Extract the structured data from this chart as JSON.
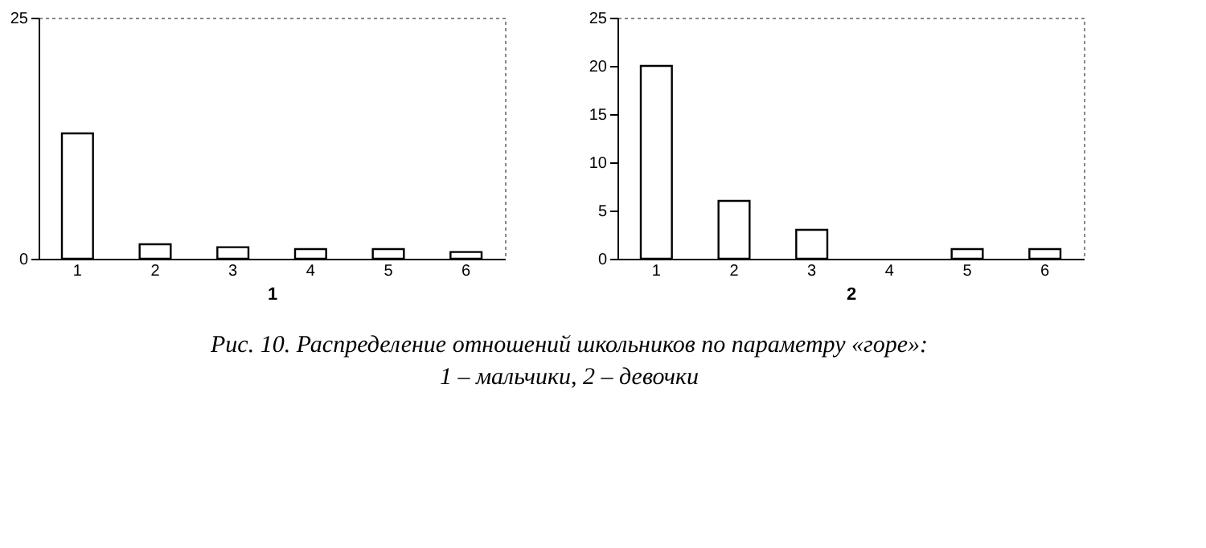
{
  "chart_data": [
    {
      "type": "bar",
      "xlabel": "1",
      "categories": [
        "1",
        "2",
        "3",
        "4",
        "5",
        "6"
      ],
      "values": [
        13,
        1.5,
        1.2,
        1,
        1,
        0.7
      ],
      "color": "#ffffff",
      "ylim": [
        0,
        25
      ],
      "yticks": [
        0,
        25
      ],
      "grid": false
    },
    {
      "type": "bar",
      "xlabel": "2",
      "categories": [
        "1",
        "2",
        "3",
        "4",
        "5",
        "6"
      ],
      "values": [
        20,
        6,
        3,
        0,
        1,
        1
      ],
      "color": "#ffffff",
      "ylim": [
        0,
        25
      ],
      "yticks": [
        0,
        5,
        10,
        15,
        20,
        25
      ],
      "grid": false,
      "annotations": [
        "Рис. 10. Распределение отношений школьников по параметру «горе»:\n1 – мальчики, 2 – девочки"
      ]
    }
  ]
}
